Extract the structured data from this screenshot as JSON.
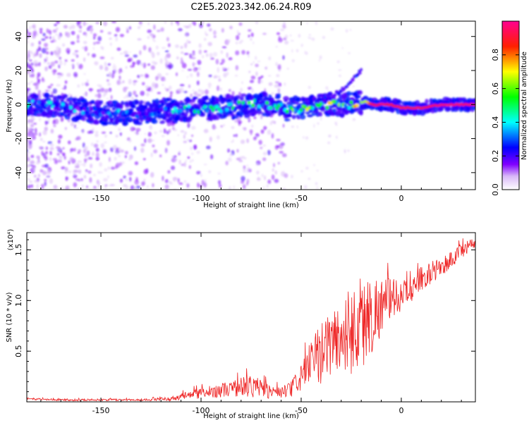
{
  "title": "C2E5.2023.342.06.24.R09",
  "chart_data": [
    {
      "type": "heatmap",
      "xlabel": "Height of straight line (km)",
      "ylabel": "Frequency (Hz)",
      "xlim": [
        -187,
        37
      ],
      "ylim": [
        -50,
        49
      ],
      "xticks": [
        -150,
        -100,
        -50,
        0
      ],
      "yticks": [
        -40,
        -20,
        0,
        20,
        40
      ],
      "grid": false,
      "colorbar": {
        "label": "Normalized spectral amplitude",
        "range": [
          0.0,
          1.0
        ],
        "ticks": [
          0.0,
          0.2,
          0.4,
          0.6,
          0.8
        ],
        "tick_labels": [
          "0.0",
          "0.2",
          "0.4",
          "0.6",
          "0.8"
        ],
        "colormap": [
          "#ffffff",
          "#c9a6f5",
          "#7a00ff",
          "#0000ff",
          "#00ffff",
          "#00ff00",
          "#ffff00",
          "#ff0000",
          "#ff00aa"
        ]
      },
      "ridge": {
        "description": "main spectral ridge",
        "x": [
          -185,
          -170,
          -150,
          -130,
          -110,
          -90,
          -70,
          -55,
          -45,
          -35,
          -25,
          -18,
          -15,
          -10,
          -5,
          0,
          5,
          10,
          20,
          36
        ],
        "y": [
          0,
          -1,
          -5,
          -5,
          -3,
          -2,
          1,
          -3,
          -2,
          0,
          0,
          2,
          0,
          0,
          0,
          -2,
          -2,
          -2,
          0,
          0
        ],
        "amplitude": [
          0.35,
          0.35,
          0.3,
          0.35,
          0.4,
          0.45,
          0.45,
          0.5,
          0.55,
          0.6,
          0.6,
          0.65,
          0.9,
          0.95,
          0.9,
          0.9,
          0.9,
          0.9,
          0.95,
          0.95
        ]
      },
      "branch": {
        "description": "rising secondary feature",
        "x": [
          -40,
          -30,
          -25,
          -20
        ],
        "y": [
          2,
          8,
          14,
          20
        ]
      }
    },
    {
      "type": "line",
      "xlabel": "Height of straight line (km)",
      "ylabel": "SNR (10 * v/v)",
      "y_multiplier": "(x10⁴)",
      "xlim": [
        -187,
        37
      ],
      "ylim": [
        0,
        1.67
      ],
      "xticks": [
        -150,
        -100,
        -50,
        0
      ],
      "yticks": [
        0.5,
        1.0,
        1.5
      ],
      "ytick_labels": [
        "0.5",
        "1.0",
        "1.5"
      ],
      "series_color": "#ee2222",
      "grid": false,
      "envelope": {
        "x": [
          -187,
          -170,
          -150,
          -130,
          -115,
          -105,
          -95,
          -85,
          -75,
          -65,
          -60,
          -55,
          -50,
          -45,
          -40,
          -35,
          -30,
          -25,
          -20,
          -15,
          -10,
          -5,
          0,
          5,
          10,
          20,
          30,
          37
        ],
        "mean": [
          0.03,
          0.02,
          0.02,
          0.02,
          0.03,
          0.07,
          0.1,
          0.13,
          0.16,
          0.1,
          0.09,
          0.12,
          0.25,
          0.38,
          0.48,
          0.6,
          0.62,
          0.72,
          0.77,
          0.85,
          0.95,
          1.02,
          1.05,
          1.1,
          1.22,
          1.33,
          1.48,
          1.58
        ],
        "spread": [
          0.01,
          0.01,
          0.01,
          0.01,
          0.02,
          0.05,
          0.06,
          0.08,
          0.12,
          0.07,
          0.06,
          0.08,
          0.15,
          0.22,
          0.3,
          0.33,
          0.4,
          0.45,
          0.5,
          0.4,
          0.3,
          0.2,
          0.15,
          0.12,
          0.12,
          0.1,
          0.08,
          0.05
        ]
      }
    }
  ]
}
